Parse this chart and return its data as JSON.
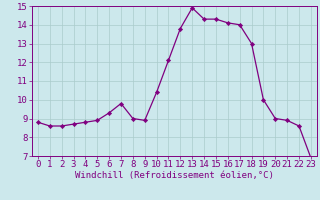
{
  "x": [
    0,
    1,
    2,
    3,
    4,
    5,
    6,
    7,
    8,
    9,
    10,
    11,
    12,
    13,
    14,
    15,
    16,
    17,
    18,
    19,
    20,
    21,
    22,
    23
  ],
  "y": [
    8.8,
    8.6,
    8.6,
    8.7,
    8.8,
    8.9,
    9.3,
    9.8,
    9.0,
    8.9,
    10.4,
    12.1,
    13.8,
    14.9,
    14.3,
    14.3,
    14.1,
    14.0,
    13.0,
    10.0,
    9.0,
    8.9,
    8.6,
    6.9
  ],
  "line_color": "#800080",
  "marker_color": "#800080",
  "bg_color": "#cce8ec",
  "grid_color": "#aacccc",
  "xlabel": "Windchill (Refroidissement éolien,°C)",
  "ylim": [
    7,
    15
  ],
  "xlim_min": -0.5,
  "xlim_max": 23.5,
  "yticks": [
    7,
    8,
    9,
    10,
    11,
    12,
    13,
    14,
    15
  ],
  "xticks": [
    0,
    1,
    2,
    3,
    4,
    5,
    6,
    7,
    8,
    9,
    10,
    11,
    12,
    13,
    14,
    15,
    16,
    17,
    18,
    19,
    20,
    21,
    22,
    23
  ],
  "label_color": "#800080",
  "tick_color": "#800080",
  "font_size": 6.5,
  "xlabel_fontsize": 6.5,
  "linewidth": 0.9,
  "markersize": 2.2
}
